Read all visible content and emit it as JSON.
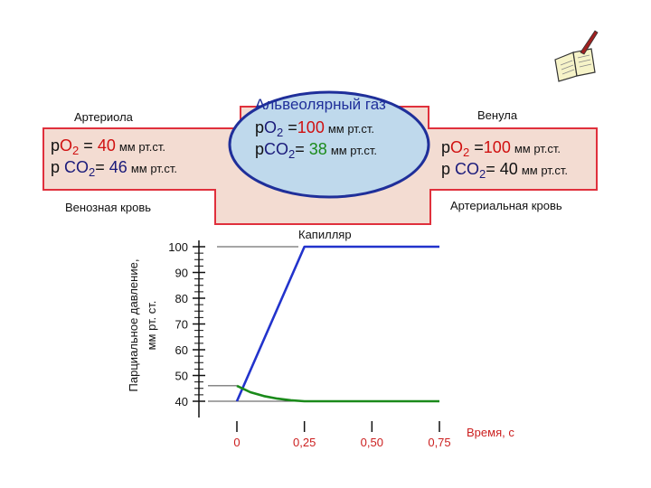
{
  "vessel": {
    "arteriole_label": "Артериола",
    "venule_label": "Венула",
    "venous_blood_label": "Венозная кровь",
    "arterial_blood_label": "Артериальная кровь",
    "capillary_label": "Капилляр"
  },
  "alveolar": {
    "title": "Альвеолярный газ",
    "po2_prefix": "р",
    "po2_gas": "O",
    "po2_sub": "2",
    "po2_eq": "=",
    "po2_value": "100",
    "po2_unit": "мм рт.ст.",
    "pco2_prefix": "р",
    "pco2_gas": "CO",
    "pco2_sub": "2",
    "pco2_eq": "=",
    "pco2_value": "38",
    "pco2_unit": "мм рт.ст."
  },
  "left_blood": {
    "po2_prefix": "р",
    "po2_gas": "O",
    "po2_sub": "2",
    "po2_eq": "=",
    "po2_value": "40",
    "po2_unit": "мм рт.ст.",
    "pco2_prefix": "р",
    "pco2_gas": "CO",
    "pco2_sub": "2",
    "pco2_eq": "=",
    "pco2_value": "46",
    "pco2_unit": "мм рт.ст."
  },
  "right_blood": {
    "po2_prefix": "р",
    "po2_gas": "O",
    "po2_sub": "2",
    "po2_eq": "=",
    "po2_value": "100",
    "po2_unit": "мм рт.ст.",
    "pco2_prefix": "р",
    "pco2_gas": "CO",
    "pco2_sub": "2",
    "pco2_eq": "=",
    "pco2_value": "40",
    "pco2_unit": "мм рт.ст."
  },
  "colors": {
    "vessel_fill": "#f3dcd2",
    "vessel_border": "#e0303c",
    "alveolus_fill": "#bfd9ec",
    "alveolus_border": "#1f2f9a",
    "o2_line": "#2233cc",
    "co2_line": "#1a8a1a",
    "axis_tick_x": "#cc2020"
  },
  "chart_data": {
    "type": "line",
    "ylabel_line1": "Парциальное давление,",
    "ylabel_line2": "мм рт. ст.",
    "xlabel": "Время, с",
    "y_ticks": [
      "100",
      "90",
      "80",
      "70",
      "60",
      "50",
      "40"
    ],
    "x_ticks": [
      "0",
      "0,25",
      "0,50",
      "0,75"
    ],
    "ylim": [
      40,
      100
    ],
    "xlim": [
      0,
      0.75
    ],
    "series": [
      {
        "color": "#2233cc",
        "x": [
          0,
          0.25,
          0.75
        ],
        "y": [
          40,
          100,
          100
        ]
      },
      {
        "color": "#1a8a1a",
        "x": [
          0,
          0.05,
          0.1,
          0.15,
          0.2,
          0.25,
          0.75
        ],
        "y": [
          46,
          43.5,
          42,
          41,
          40.4,
          40,
          40
        ]
      }
    ]
  }
}
